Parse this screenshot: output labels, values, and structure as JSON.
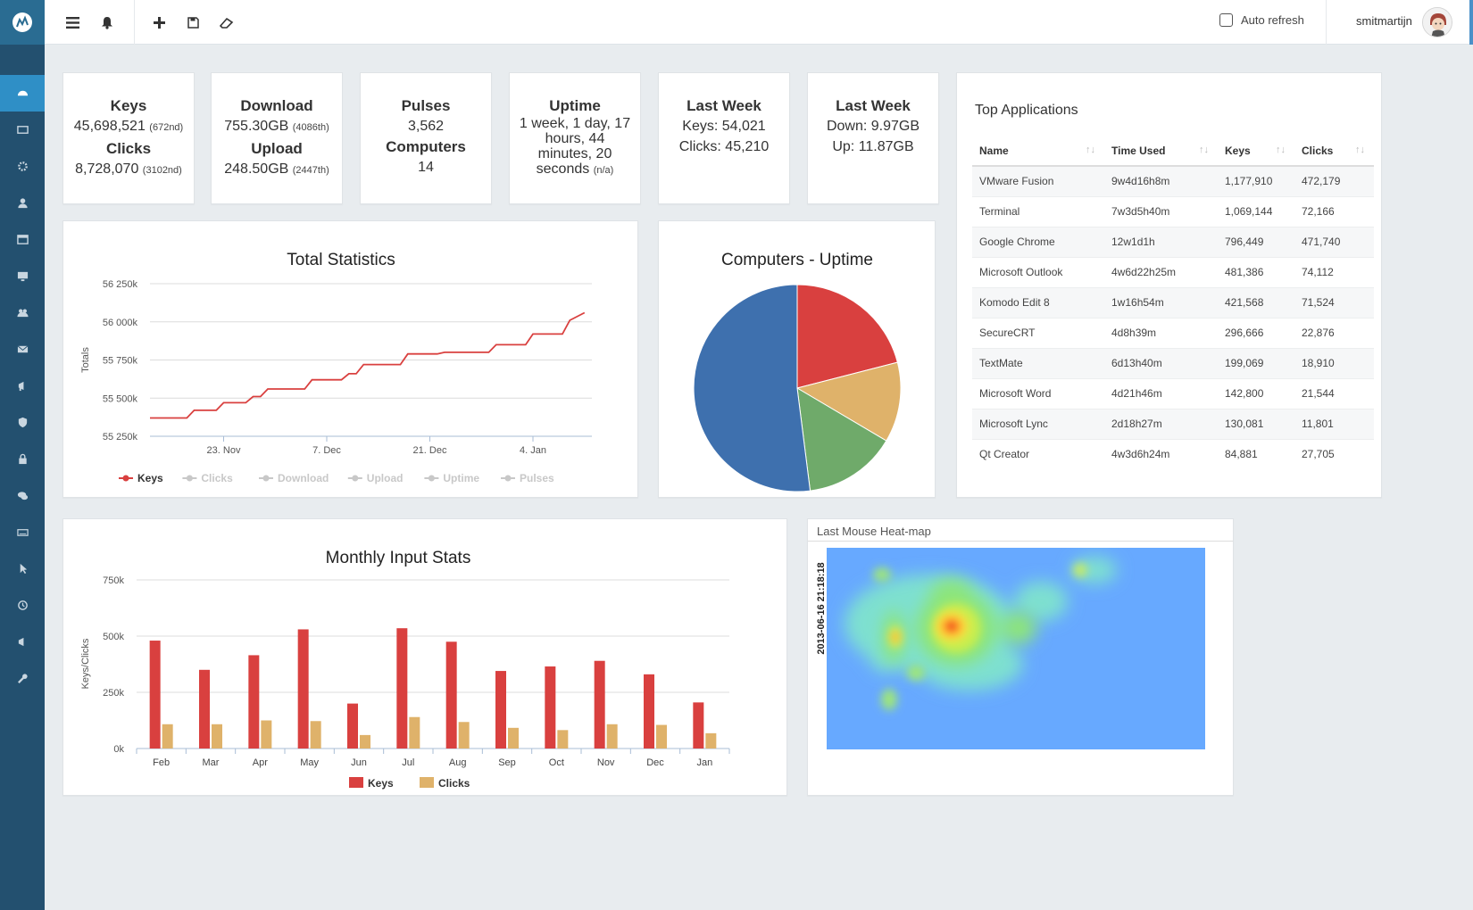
{
  "topbar": {
    "auto_refresh_label": "Auto refresh",
    "auto_refresh_checked": false,
    "username": "smitmartijn"
  },
  "stats": {
    "keys": {
      "label": "Keys",
      "value": "45,698,521",
      "rank": "(672nd)"
    },
    "clicks": {
      "label": "Clicks",
      "value": "8,728,070",
      "rank": "(3102nd)"
    },
    "download": {
      "label": "Download",
      "value": "755.30GB",
      "rank": "(4086th)"
    },
    "upload": {
      "label": "Upload",
      "value": "248.50GB",
      "rank": "(2447th)"
    },
    "pulses": {
      "label": "Pulses",
      "value": "3,562"
    },
    "computers": {
      "label": "Computers",
      "value": "14"
    },
    "uptime": {
      "label": "Uptime",
      "value": "1 week, 1 day, 17 hours, 44 minutes, 20 seconds",
      "rank": "(n/a)"
    },
    "last_week_keys": {
      "label": "Last Week",
      "line1": "Keys: 54,021",
      "line2": "Clicks: 45,210"
    },
    "last_week_net": {
      "label": "Last Week",
      "line1": "Down: 9.97GB",
      "line2": "Up: 11.87GB"
    }
  },
  "top_apps": {
    "title": "Top Applications",
    "columns": [
      "Name",
      "Time Used",
      "Keys",
      "Clicks"
    ],
    "rows": [
      [
        "VMware Fusion",
        "9w4d16h8m",
        "1,177,910",
        "472,179"
      ],
      [
        "Terminal",
        "7w3d5h40m",
        "1,069,144",
        "72,166"
      ],
      [
        "Google Chrome",
        "12w1d1h",
        "796,449",
        "471,740"
      ],
      [
        "Microsoft Outlook",
        "4w6d22h25m",
        "481,386",
        "74,112"
      ],
      [
        "Komodo Edit 8",
        "1w16h54m",
        "421,568",
        "71,524"
      ],
      [
        "SecureCRT",
        "4d8h39m",
        "296,666",
        "22,876"
      ],
      [
        "TextMate",
        "6d13h40m",
        "199,069",
        "18,910"
      ],
      [
        "Microsoft Word",
        "4d21h46m",
        "142,800",
        "21,544"
      ],
      [
        "Microsoft Lync",
        "2d18h27m",
        "130,081",
        "11,801"
      ],
      [
        "Qt Creator",
        "4w3d6h24m",
        "84,881",
        "27,705"
      ]
    ]
  },
  "heatmap": {
    "title": "Last Mouse Heat-map",
    "timestamp": "2013-06-16 21:18:18"
  },
  "chart_data": [
    {
      "type": "line",
      "title": "Total Statistics",
      "ylabel": "Totals",
      "ylim": [
        55250,
        56250
      ],
      "yticks": [
        55250,
        55500,
        55750,
        56000,
        56250
      ],
      "ytick_labels": [
        "55 250k",
        "55 500k",
        "55 750k",
        "56 000k",
        "56 250k"
      ],
      "xtick_labels": [
        "23. Nov",
        "7. Dec",
        "21. Dec",
        "4. Jan"
      ],
      "xtick_days": [
        10,
        24,
        38,
        52
      ],
      "xlim_days": [
        0,
        60
      ],
      "legend": [
        "Keys",
        "Clicks",
        "Download",
        "Upload",
        "Uptime",
        "Pulses"
      ],
      "legend_active": "Keys",
      "series": [
        {
          "name": "Keys",
          "color": "#d9403f",
          "days": [
            0,
            5,
            6,
            9,
            10,
            13,
            14,
            15,
            16,
            21,
            22,
            26,
            27,
            28,
            29,
            34,
            35,
            39,
            40,
            46,
            47,
            51,
            52,
            56,
            57,
            59
          ],
          "values": [
            55370,
            55370,
            55420,
            55420,
            55470,
            55470,
            55510,
            55510,
            55560,
            55560,
            55620,
            55620,
            55660,
            55660,
            55720,
            55720,
            55790,
            55790,
            55800,
            55800,
            55850,
            55850,
            55920,
            55920,
            56010,
            56060
          ]
        }
      ]
    },
    {
      "type": "pie",
      "title": "Computers - Uptime",
      "slices": [
        {
          "value": 21,
          "color": "#d9403f"
        },
        {
          "value": 12.5,
          "color": "#dfb26a"
        },
        {
          "value": 14.5,
          "color": "#6faa6a"
        },
        {
          "value": 52,
          "color": "#3e70ae"
        }
      ]
    },
    {
      "type": "bar",
      "title": "Monthly Input Stats",
      "ylabel": "Keys/Clicks",
      "ylim": [
        0,
        750000
      ],
      "yticks": [
        0,
        250000,
        500000,
        750000
      ],
      "ytick_labels": [
        "0k",
        "250k",
        "500k",
        "750k"
      ],
      "categories": [
        "Feb",
        "Mar",
        "Apr",
        "May",
        "Jun",
        "Jul",
        "Aug",
        "Sep",
        "Oct",
        "Nov",
        "Dec",
        "Jan"
      ],
      "legend": [
        "Keys",
        "Clicks"
      ],
      "series": [
        {
          "name": "Keys",
          "color": "#d9403f",
          "values": [
            480000,
            350000,
            415000,
            530000,
            200000,
            535000,
            475000,
            345000,
            365000,
            390000,
            330000,
            205000
          ]
        },
        {
          "name": "Clicks",
          "color": "#dfb26a",
          "values": [
            108000,
            108000,
            125000,
            122000,
            60000,
            140000,
            118000,
            92000,
            82000,
            108000,
            105000,
            68000
          ]
        }
      ]
    }
  ]
}
